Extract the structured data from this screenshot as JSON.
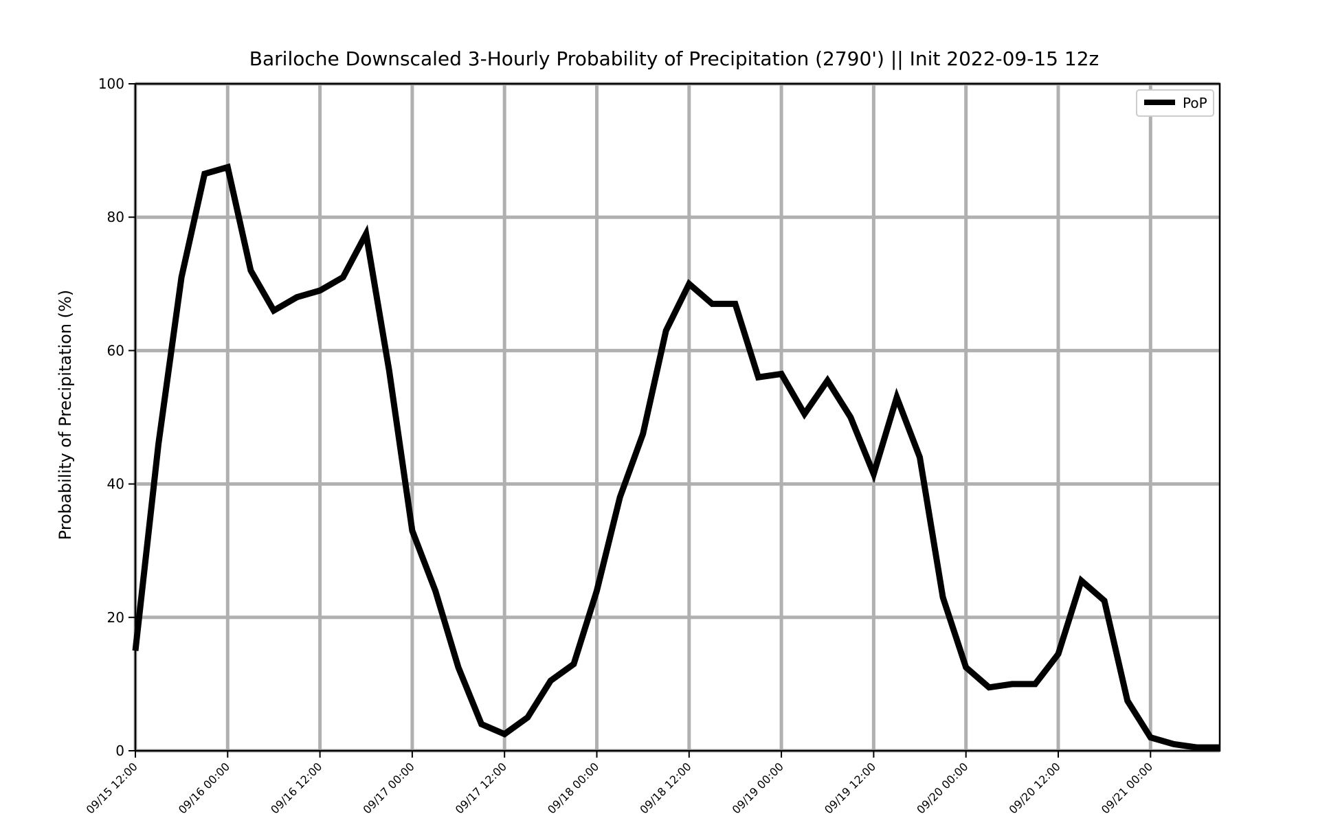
{
  "chart_data": {
    "type": "line",
    "title": "Bariloche Downscaled 3-Hourly Probability of Precipitation (2790') || Init 2022-09-15 12z",
    "xlabel": "",
    "ylabel": "Probability of Precipitation (%)",
    "ylim": [
      0,
      100
    ],
    "yticks": [
      0,
      20,
      40,
      60,
      80,
      100
    ],
    "x_start": "09/15 12:00",
    "x_step": "3 hours",
    "x_range_steps": [
      0,
      47
    ],
    "xtick_labels": [
      "09/15 12:00",
      "09/16 00:00",
      "09/16 12:00",
      "09/17 00:00",
      "09/17 12:00",
      "09/18 00:00",
      "09/18 12:00",
      "09/19 00:00",
      "09/19 12:00",
      "09/20 00:00",
      "09/20 12:00",
      "09/21 00:00"
    ],
    "grid": true,
    "legend": {
      "placement": "top-right",
      "entries": [
        "PoP"
      ]
    },
    "series": [
      {
        "name": "PoP",
        "color": "#000000",
        "x": [
          "09/15 12:00",
          "09/15 15:00",
          "09/15 18:00",
          "09/15 21:00",
          "09/16 00:00",
          "09/16 03:00",
          "09/16 06:00",
          "09/16 09:00",
          "09/16 12:00",
          "09/16 15:00",
          "09/16 18:00",
          "09/16 21:00",
          "09/17 00:00",
          "09/17 03:00",
          "09/17 06:00",
          "09/17 09:00",
          "09/17 12:00",
          "09/17 15:00",
          "09/17 18:00",
          "09/17 21:00",
          "09/18 00:00",
          "09/18 03:00",
          "09/18 06:00",
          "09/18 09:00",
          "09/18 12:00",
          "09/18 15:00",
          "09/18 18:00",
          "09/18 21:00",
          "09/19 00:00",
          "09/19 03:00",
          "09/19 06:00",
          "09/19 09:00",
          "09/19 12:00",
          "09/19 15:00",
          "09/19 18:00",
          "09/19 21:00",
          "09/20 00:00",
          "09/20 03:00",
          "09/20 06:00",
          "09/20 09:00",
          "09/20 12:00",
          "09/20 15:00",
          "09/20 18:00",
          "09/20 21:00",
          "09/21 00:00",
          "09/21 03:00",
          "09/21 06:00",
          "09/21 09:00"
        ],
        "values": [
          15,
          46,
          71,
          86.5,
          87.5,
          72,
          66,
          68,
          69,
          71,
          77.5,
          57,
          33,
          24,
          12.5,
          4,
          2.5,
          5,
          10.5,
          13,
          24,
          38,
          47.5,
          63,
          70,
          67,
          67,
          56,
          56.5,
          50.5,
          55.5,
          50,
          41.5,
          53,
          44,
          23,
          12.5,
          9.5,
          10,
          10,
          14.5,
          25.5,
          22.5,
          7.5,
          2,
          1,
          0.5,
          0.5
        ]
      }
    ]
  }
}
